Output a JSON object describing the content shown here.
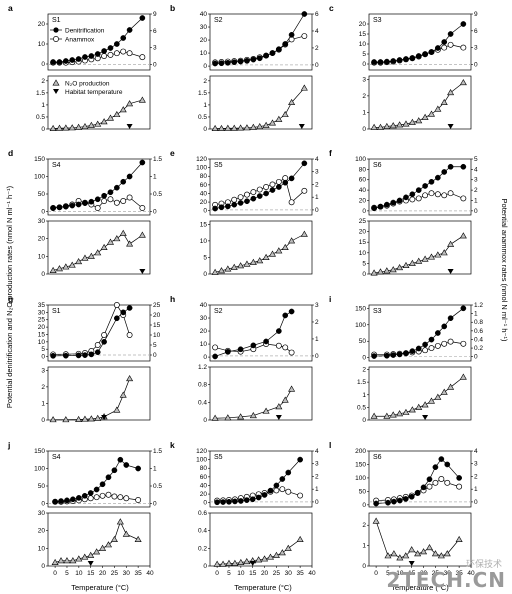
{
  "figure": {
    "left_axis_label": "Potential denitrification and N₂O production rates (nmol N ml⁻¹ h⁻¹)",
    "right_axis_label": "Potential anammox rates (nmol N ml⁻¹ h⁻¹)",
    "x_axis_label": "Temperature (°C)",
    "legend": {
      "denitrification": "Denitrification",
      "anammox": "Anammox",
      "n2o": "N₂O production",
      "habitat": "Habitat temperature"
    },
    "colors": {
      "denitrification": "#000000",
      "anammox": "#ffffff",
      "n2o": "#bdbdbd",
      "habitat": "#000000",
      "zero_line": "#b0b0b0"
    },
    "watermark": "2TECH.CN",
    "watermark_cn": "环保技术"
  },
  "chart_data": [
    {
      "letter": "a",
      "site": "S1",
      "type": "scatter",
      "x": [
        0,
        2.5,
        5,
        7.5,
        10,
        12.5,
        15,
        17.5,
        20,
        22.5,
        25,
        27.5,
        30,
        35
      ],
      "xticks": [],
      "xlim": [
        -2,
        38
      ],
      "top": {
        "ylim": [
          -3,
          25
        ],
        "yticks": [
          0,
          10,
          20
        ],
        "rlim": [
          -1,
          9
        ],
        "rticks": [
          0,
          3,
          6,
          9
        ],
        "denit": [
          1,
          1,
          1.5,
          2,
          2.5,
          3.5,
          4,
          5,
          6.5,
          8,
          10,
          13,
          17,
          23
        ],
        "anammox": [
          0.3,
          0.3,
          0.3,
          0.4,
          0.5,
          0.7,
          0.9,
          1.1,
          1.5,
          1.7,
          2,
          2.3,
          2,
          1.3
        ]
      },
      "bottom": {
        "ylim": [
          0,
          2.2
        ],
        "yticks": [
          0,
          0.5,
          1,
          1.5,
          2
        ],
        "n2o": [
          0.02,
          0.03,
          0.04,
          0.05,
          0.07,
          0.1,
          0.15,
          0.2,
          0.3,
          0.45,
          0.6,
          0.8,
          1.05,
          1.2
        ]
      },
      "habitat": 30,
      "legend": true
    },
    {
      "letter": "b",
      "site": "S2",
      "type": "scatter",
      "x": [
        0,
        2.5,
        5,
        7.5,
        10,
        12.5,
        15,
        17.5,
        20,
        22.5,
        25,
        27.5,
        30,
        35
      ],
      "xticks": [],
      "xlim": [
        -2,
        38
      ],
      "top": {
        "ylim": [
          -3,
          40
        ],
        "yticks": [
          0,
          10,
          20,
          30,
          40
        ],
        "rlim": [
          -0.6,
          6
        ],
        "rticks": [
          0,
          2,
          4,
          6
        ],
        "denit": [
          2,
          2.2,
          2.5,
          3,
          3.5,
          4,
          5,
          6,
          8,
          10,
          13,
          17,
          24,
          40
        ],
        "anammox": [
          0.3,
          0.35,
          0.4,
          0.45,
          0.5,
          0.6,
          0.7,
          0.9,
          1.1,
          1.4,
          1.8,
          2.4,
          3,
          3.4
        ]
      },
      "bottom": {
        "ylim": [
          0,
          2.2
        ],
        "yticks": [
          0,
          0.5,
          1,
          1.5,
          2
        ],
        "n2o": [
          0.02,
          0.02,
          0.03,
          0.03,
          0.04,
          0.05,
          0.07,
          0.1,
          0.15,
          0.25,
          0.4,
          0.6,
          1.1,
          1.7
        ]
      },
      "habitat": 34
    },
    {
      "letter": "c",
      "site": "S3",
      "type": "scatter",
      "x": [
        0,
        2.5,
        5,
        7.5,
        10,
        12.5,
        15,
        17.5,
        20,
        22.5,
        25,
        27.5,
        30,
        35
      ],
      "xticks": [],
      "xlim": [
        -2,
        38
      ],
      "top": {
        "ylim": [
          -3,
          25
        ],
        "yticks": [
          0,
          5,
          10,
          15,
          20
        ],
        "rlim": [
          -1,
          9
        ],
        "rticks": [
          0,
          3,
          6,
          9
        ],
        "denit": [
          1,
          1,
          1.2,
          1.5,
          2,
          2.5,
          3,
          4,
          5,
          6,
          8,
          11,
          15,
          20
        ],
        "anammox": [
          0.3,
          0.3,
          0.4,
          0.5,
          0.7,
          0.9,
          1.1,
          1.4,
          1.8,
          2.2,
          2.6,
          3,
          3.5,
          3
        ]
      },
      "bottom": {
        "ylim": [
          0,
          3.2
        ],
        "yticks": [
          0,
          1,
          2,
          3
        ],
        "n2o": [
          0.1,
          0.1,
          0.15,
          0.2,
          0.25,
          0.3,
          0.4,
          0.5,
          0.7,
          0.9,
          1.2,
          1.6,
          2.2,
          2.8
        ]
      },
      "habitat": 30
    },
    {
      "letter": "d",
      "site": "S4",
      "type": "scatter",
      "x": [
        0,
        2.5,
        5,
        7.5,
        10,
        12.5,
        15,
        17.5,
        20,
        22.5,
        25,
        27.5,
        30,
        35
      ],
      "xticks": [],
      "xlim": [
        -2,
        38
      ],
      "top": {
        "ylim": [
          -10,
          150
        ],
        "yticks": [
          0,
          50,
          100,
          150
        ],
        "rlim": [
          -0.1,
          1.5
        ],
        "rticks": [
          0,
          0.5,
          1,
          1.5
        ],
        "denit": [
          10,
          12,
          14,
          17,
          20,
          24,
          28,
          35,
          45,
          55,
          68,
          85,
          100,
          140
        ],
        "anammox": [
          0.1,
          0.12,
          0.15,
          0.2,
          0.3,
          0.25,
          0.2,
          0.1,
          0.3,
          0.35,
          0.25,
          0.3,
          0.4,
          0.1
        ]
      },
      "bottom": {
        "ylim": [
          0,
          30
        ],
        "yticks": [
          0,
          10,
          20,
          30
        ],
        "n2o": [
          2,
          3,
          4,
          5,
          7,
          9,
          10,
          12,
          15,
          18,
          20,
          23,
          17,
          22
        ]
      },
      "habitat": 35
    },
    {
      "letter": "e",
      "site": "S5",
      "type": "scatter",
      "x": [
        0,
        2.5,
        5,
        7.5,
        10,
        12.5,
        15,
        17.5,
        20,
        22.5,
        25,
        27.5,
        30,
        35
      ],
      "xticks": [],
      "xlim": [
        -2,
        38
      ],
      "top": {
        "ylim": [
          -10,
          120
        ],
        "yticks": [
          0,
          20,
          40,
          60,
          80,
          100,
          120
        ],
        "rlim": [
          -0.4,
          4
        ],
        "rticks": [
          0,
          1,
          2,
          3,
          4
        ],
        "denit": [
          5,
          8,
          10,
          14,
          18,
          22,
          28,
          34,
          40,
          48,
          55,
          65,
          75,
          110
        ],
        "anammox": [
          0.4,
          0.5,
          0.6,
          0.8,
          1,
          1.2,
          1.4,
          1.6,
          1.8,
          2,
          2.2,
          2.5,
          0.6,
          1.5
        ]
      },
      "bottom": {
        "ylim": [
          0,
          16
        ],
        "yticks": [
          0,
          5,
          10,
          15
        ],
        "n2o": [
          0.5,
          1,
          1.5,
          2,
          2.5,
          3,
          3.5,
          4,
          5,
          6,
          7,
          8,
          10,
          12
        ]
      },
      "habitat": null
    },
    {
      "letter": "f",
      "site": "S6",
      "type": "scatter",
      "x": [
        0,
        2.5,
        5,
        7.5,
        10,
        12.5,
        15,
        17.5,
        20,
        22.5,
        25,
        27.5,
        30,
        35
      ],
      "xticks": [],
      "xlim": [
        -2,
        38
      ],
      "top": {
        "ylim": [
          -8,
          100
        ],
        "yticks": [
          0,
          20,
          40,
          60,
          80,
          100
        ],
        "rlim": [
          -0.4,
          5
        ],
        "rticks": [
          0,
          1,
          2,
          3,
          4,
          5
        ],
        "denit": [
          5,
          8,
          12,
          16,
          20,
          26,
          32,
          40,
          48,
          56,
          64,
          75,
          85,
          85
        ],
        "anammox": [
          0.3,
          0.4,
          0.5,
          0.7,
          0.9,
          1,
          1.1,
          1.2,
          1.5,
          1.7,
          1.6,
          1.5,
          1.7,
          1.2
        ]
      },
      "bottom": {
        "ylim": [
          0,
          25
        ],
        "yticks": [
          0,
          5,
          10,
          15,
          20,
          25
        ],
        "n2o": [
          0.5,
          1,
          1.5,
          2,
          3,
          4,
          5,
          6,
          7,
          8,
          9,
          10,
          14,
          18
        ]
      },
      "habitat": 30
    },
    {
      "letter": "g",
      "site": "S1",
      "type": "scatter",
      "x": [
        0,
        5,
        10,
        12.5,
        15,
        17.5,
        20,
        25,
        27.5,
        30
      ],
      "xticks": [],
      "xlim": [
        -2,
        38
      ],
      "top": {
        "ylim": [
          -3,
          35
        ],
        "yticks": [
          0,
          5,
          10,
          15,
          20,
          25,
          30,
          35
        ],
        "rlim": [
          -3,
          25
        ],
        "rticks": [
          0,
          5,
          10,
          15,
          20,
          25
        ],
        "denit": [
          0.5,
          0.6,
          0.8,
          1,
          1.5,
          3,
          10,
          26,
          30,
          33
        ],
        "anammox": [
          0.3,
          0.4,
          0.6,
          1,
          2,
          5,
          10,
          25,
          20,
          10
        ]
      },
      "bottom": {
        "ylim": [
          0,
          3.2
        ],
        "yticks": [
          0,
          1,
          2,
          3
        ],
        "n2o": [
          0.02,
          0.02,
          0.03,
          0.05,
          0.07,
          0.1,
          0.2,
          0.6,
          1.5,
          2.5
        ]
      },
      "habitat": 20
    },
    {
      "letter": "h",
      "site": "S2",
      "type": "scatter",
      "x": [
        0,
        5,
        10,
        15,
        20,
        25,
        27.5,
        30
      ],
      "xticks": [],
      "xlim": [
        -2,
        38
      ],
      "top": {
        "ylim": [
          -3,
          40
        ],
        "yticks": [
          0,
          10,
          20,
          30,
          40
        ],
        "rlim": [
          -0.3,
          3
        ],
        "rticks": [
          0,
          1,
          2,
          3
        ],
        "denit": [
          0.5,
          4,
          6,
          9,
          12,
          20,
          32,
          35
        ],
        "anammox": [
          0.5,
          0.3,
          0.25,
          0.4,
          0.7,
          0.6,
          0.5,
          0.2
        ]
      },
      "bottom": {
        "ylim": [
          0,
          1.2
        ],
        "yticks": [
          0,
          0.4,
          0.8,
          1.2
        ],
        "n2o": [
          0.04,
          0.05,
          0.07,
          0.1,
          0.2,
          0.3,
          0.45,
          0.7
        ]
      },
      "habitat": 25
    },
    {
      "letter": "i",
      "site": "S3",
      "type": "scatter",
      "x": [
        0,
        5,
        7.5,
        10,
        12.5,
        15,
        17.5,
        20,
        22.5,
        25,
        27.5,
        30,
        35
      ],
      "xticks": [],
      "xlim": [
        -2,
        38
      ],
      "top": {
        "ylim": [
          -10,
          160
        ],
        "yticks": [
          0,
          50,
          100,
          150
        ],
        "rlim": [
          -0.1,
          1.2
        ],
        "rticks": [
          0,
          0.2,
          0.4,
          0.6,
          0.8,
          1,
          1.2
        ],
        "denit": [
          5,
          6,
          8,
          10,
          14,
          20,
          28,
          40,
          55,
          75,
          95,
          120,
          150
        ],
        "anammox": [
          0.05,
          0.05,
          0.06,
          0.07,
          0.08,
          0.1,
          0.12,
          0.15,
          0.2,
          0.25,
          0.3,
          0.35,
          0.3
        ]
      },
      "bottom": {
        "ylim": [
          0,
          2.1
        ],
        "yticks": [
          0,
          0.5,
          1,
          1.5,
          2
        ],
        "n2o": [
          0.15,
          0.15,
          0.2,
          0.25,
          0.3,
          0.4,
          0.5,
          0.6,
          0.75,
          0.9,
          1.1,
          1.3,
          1.7
        ]
      },
      "habitat": 20
    },
    {
      "letter": "j",
      "site": "S4",
      "type": "scatter",
      "x": [
        0,
        2.5,
        5,
        7.5,
        10,
        12.5,
        15,
        17.5,
        20,
        22.5,
        25,
        27.5,
        30,
        35
      ],
      "xticks": [
        0,
        5,
        10,
        15,
        20,
        25,
        30,
        35,
        40
      ],
      "xlim": [
        -3,
        40
      ],
      "top": {
        "ylim": [
          -10,
          150
        ],
        "yticks": [
          0,
          50,
          100,
          150
        ],
        "rlim": [
          -0.1,
          1.5
        ],
        "rticks": [
          0,
          0.5,
          1,
          1.5
        ],
        "denit": [
          5,
          7,
          9,
          12,
          16,
          22,
          30,
          40,
          55,
          75,
          95,
          125,
          110,
          100
        ],
        "anammox": [
          0.05,
          0.05,
          0.06,
          0.07,
          0.09,
          0.12,
          0.15,
          0.18,
          0.22,
          0.25,
          0.2,
          0.18,
          0.15,
          0.1
        ]
      },
      "bottom": {
        "ylim": [
          0,
          30
        ],
        "yticks": [
          0,
          10,
          20,
          30
        ],
        "n2o": [
          2,
          3,
          3,
          3,
          4,
          5,
          6,
          8,
          10,
          12,
          15,
          25,
          18,
          15
        ]
      },
      "habitat": 15
    },
    {
      "letter": "k",
      "site": "S5",
      "type": "scatter",
      "x": [
        0,
        2.5,
        5,
        7.5,
        10,
        12.5,
        15,
        17.5,
        20,
        22.5,
        25,
        27.5,
        30,
        35
      ],
      "xticks": [
        0,
        5,
        10,
        15,
        20,
        25,
        30,
        35,
        40
      ],
      "xlim": [
        -3,
        40
      ],
      "top": {
        "ylim": [
          -10,
          120
        ],
        "yticks": [
          0,
          20,
          40,
          60,
          80,
          100,
          120
        ],
        "rlim": [
          -0.4,
          4
        ],
        "rticks": [
          0,
          1,
          2,
          3,
          4
        ],
        "denit": [
          1,
          1.5,
          2,
          3,
          4,
          6,
          8,
          12,
          18,
          28,
          40,
          55,
          70,
          100
        ],
        "anammox": [
          0.1,
          0.12,
          0.15,
          0.2,
          0.3,
          0.4,
          0.5,
          0.6,
          0.7,
          0.8,
          0.9,
          1,
          0.8,
          0.5
        ]
      },
      "bottom": {
        "ylim": [
          0,
          0.6
        ],
        "yticks": [
          0,
          0.2,
          0.4,
          0.6
        ],
        "n2o": [
          0.02,
          0.02,
          0.03,
          0.03,
          0.04,
          0.05,
          0.06,
          0.07,
          0.08,
          0.1,
          0.12,
          0.15,
          0.2,
          0.3
        ]
      },
      "habitat": 15
    },
    {
      "letter": "l",
      "site": "S6",
      "type": "scatter",
      "x": [
        0,
        5,
        7.5,
        10,
        12.5,
        15,
        17.5,
        20,
        22.5,
        25,
        27.5,
        30,
        35
      ],
      "xticks": [
        0,
        5,
        10,
        15,
        20,
        25,
        30,
        35,
        40
      ],
      "xlim": [
        -3,
        40
      ],
      "top": {
        "ylim": [
          -8,
          200
        ],
        "yticks": [
          0,
          50,
          100,
          150,
          200
        ],
        "rlim": [
          -0.4,
          4
        ],
        "rticks": [
          0,
          1,
          2,
          3,
          4
        ],
        "denit": [
          5,
          8,
          12,
          16,
          22,
          30,
          45,
          65,
          95,
          140,
          170,
          150,
          100
        ],
        "anammox": [
          0.1,
          0.15,
          0.2,
          0.3,
          0.4,
          0.5,
          0.7,
          0.9,
          1.2,
          1.5,
          1.8,
          1.5,
          1.2
        ]
      },
      "bottom": {
        "ylim": [
          0,
          2.6
        ],
        "yticks": [
          0,
          1,
          2
        ],
        "n2o": [
          2.2,
          0.5,
          0.6,
          0.4,
          0.5,
          0.8,
          0.6,
          0.7,
          0.9,
          0.6,
          0.5,
          0.6,
          1.3
        ]
      },
      "habitat": 15
    }
  ]
}
